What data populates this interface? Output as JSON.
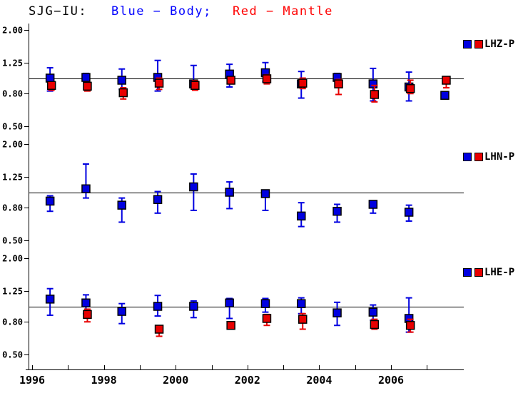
{
  "title": {
    "station": "SJG−IU:",
    "blue_segment": "Blue − Body;",
    "red_segment": "Red − Mantle"
  },
  "colors": {
    "body_blue": "#0000e0",
    "mantle_red": "#e80000",
    "title_blue": "#0000ff",
    "title_red": "#ff0000",
    "axis": "#000000"
  },
  "chart_data": {
    "type": "scatter",
    "title": "SJG−IU:  Blue − Body;  Red − Mantle",
    "x_axis": {
      "ticks": [
        1996,
        1997,
        1998,
        1999,
        2000,
        2001,
        2002,
        2003,
        2004,
        2005,
        2006,
        2007
      ],
      "labeled_ticks": [
        "1996",
        "1998",
        "2000",
        "2002",
        "2004",
        "2006"
      ],
      "range": [
        1995.85,
        2008.05
      ]
    },
    "y_axis": {
      "scale": "log",
      "tick_labels": [
        "2.00",
        "1.25",
        "0.80",
        "0.50"
      ],
      "tick_values": [
        2.0,
        1.25,
        0.8,
        0.5
      ],
      "ylim": [
        0.5,
        2.0
      ],
      "reference_line": 1.0
    },
    "panels": [
      {
        "label": "LHZ-P",
        "series": [
          {
            "name": "Body",
            "color": "blue",
            "points": [
              {
                "year": 1996.5,
                "value": 1.0,
                "lo": 0.83,
                "hi": 1.16
              },
              {
                "year": 1997.5,
                "value": 1.01,
                "lo": 0.95,
                "hi": 1.07
              },
              {
                "year": 1998.5,
                "value": 0.97,
                "lo": 0.85,
                "hi": 1.14
              },
              {
                "year": 1999.5,
                "value": 1.01,
                "lo": 0.83,
                "hi": 1.29
              },
              {
                "year": 2000.5,
                "value": 0.92,
                "lo": 0.87,
                "hi": 1.2
              },
              {
                "year": 2001.5,
                "value": 1.06,
                "lo": 0.88,
                "hi": 1.22
              },
              {
                "year": 2002.5,
                "value": 1.08,
                "lo": 0.95,
                "hi": 1.25
              },
              {
                "year": 2003.5,
                "value": 0.92,
                "lo": 0.75,
                "hi": 1.1
              },
              {
                "year": 2004.5,
                "value": 1.01,
                "lo": 0.96,
                "hi": 1.07
              },
              {
                "year": 2005.5,
                "value": 0.92,
                "lo": 0.72,
                "hi": 1.15
              },
              {
                "year": 2006.5,
                "value": 0.88,
                "lo": 0.72,
                "hi": 1.09
              },
              {
                "year": 2007.5,
                "value": 0.78,
                "lo": 0.75,
                "hi": 0.81
              }
            ]
          },
          {
            "name": "Mantle",
            "color": "red",
            "points": [
              {
                "year": 1996.5,
                "value": 0.9,
                "lo": 0.84,
                "hi": 0.95
              },
              {
                "year": 1997.5,
                "value": 0.89,
                "lo": 0.83,
                "hi": 0.94
              },
              {
                "year": 1998.5,
                "value": 0.81,
                "lo": 0.74,
                "hi": 0.87
              },
              {
                "year": 1999.5,
                "value": 0.93,
                "lo": 0.85,
                "hi": 1.0
              },
              {
                "year": 2000.5,
                "value": 0.9,
                "lo": 0.84,
                "hi": 0.96
              },
              {
                "year": 2001.5,
                "value": 0.97,
                "lo": 0.92,
                "hi": 1.02
              },
              {
                "year": 2002.5,
                "value": 0.99,
                "lo": 0.92,
                "hi": 1.05
              },
              {
                "year": 2003.5,
                "value": 0.93,
                "lo": 0.86,
                "hi": 1.0
              },
              {
                "year": 2004.5,
                "value": 0.92,
                "lo": 0.79,
                "hi": 0.98
              },
              {
                "year": 2005.5,
                "value": 0.79,
                "lo": 0.71,
                "hi": 0.9
              },
              {
                "year": 2006.5,
                "value": 0.86,
                "lo": 0.8,
                "hi": 0.97
              },
              {
                "year": 2007.5,
                "value": 0.97,
                "lo": 0.87,
                "hi": 1.0
              }
            ]
          }
        ]
      },
      {
        "label": "LHN-P",
        "series": [
          {
            "name": "Body",
            "color": "blue",
            "points": [
              {
                "year": 1996.5,
                "value": 0.88,
                "lo": 0.76,
                "hi": 0.95
              },
              {
                "year": 1997.5,
                "value": 1.05,
                "lo": 0.92,
                "hi": 1.5
              },
              {
                "year": 1998.5,
                "value": 0.83,
                "lo": 0.65,
                "hi": 0.92
              },
              {
                "year": 1999.5,
                "value": 0.9,
                "lo": 0.74,
                "hi": 1.01
              },
              {
                "year": 2000.5,
                "value": 1.08,
                "lo": 0.77,
                "hi": 1.3
              },
              {
                "year": 2001.5,
                "value": 1.0,
                "lo": 0.79,
                "hi": 1.16
              },
              {
                "year": 2002.5,
                "value": 0.98,
                "lo": 0.77,
                "hi": 1.03
              },
              {
                "year": 2003.5,
                "value": 0.71,
                "lo": 0.61,
                "hi": 0.86
              },
              {
                "year": 2004.5,
                "value": 0.76,
                "lo": 0.65,
                "hi": 0.84
              },
              {
                "year": 2005.5,
                "value": 0.84,
                "lo": 0.74,
                "hi": 0.88
              },
              {
                "year": 2006.5,
                "value": 0.75,
                "lo": 0.66,
                "hi": 0.83
              }
            ]
          },
          {
            "name": "Mantle",
            "color": "red",
            "points": []
          }
        ]
      },
      {
        "label": "LHE-P",
        "series": [
          {
            "name": "Body",
            "color": "blue",
            "points": [
              {
                "year": 1996.5,
                "value": 1.11,
                "lo": 0.88,
                "hi": 1.29
              },
              {
                "year": 1997.5,
                "value": 1.05,
                "lo": 0.9,
                "hi": 1.18
              },
              {
                "year": 1998.5,
                "value": 0.93,
                "lo": 0.78,
                "hi": 1.04
              },
              {
                "year": 1999.5,
                "value": 1.0,
                "lo": 0.87,
                "hi": 1.17
              },
              {
                "year": 2000.5,
                "value": 1.0,
                "lo": 0.85,
                "hi": 1.08
              },
              {
                "year": 2001.5,
                "value": 1.05,
                "lo": 0.84,
                "hi": 1.12
              },
              {
                "year": 2002.5,
                "value": 1.04,
                "lo": 0.92,
                "hi": 1.12
              },
              {
                "year": 2003.5,
                "value": 1.04,
                "lo": 0.9,
                "hi": 1.13
              },
              {
                "year": 2004.5,
                "value": 0.91,
                "lo": 0.76,
                "hi": 1.06
              },
              {
                "year": 2005.5,
                "value": 0.92,
                "lo": 0.82,
                "hi": 1.02
              },
              {
                "year": 2006.5,
                "value": 0.84,
                "lo": 0.69,
                "hi": 1.13
              }
            ]
          },
          {
            "name": "Mantle",
            "color": "red",
            "points": [
              {
                "year": 1997.5,
                "value": 0.89,
                "lo": 0.8,
                "hi": 0.96
              },
              {
                "year": 1999.5,
                "value": 0.72,
                "lo": 0.65,
                "hi": 0.75
              },
              {
                "year": 2001.5,
                "value": 0.76,
                "lo": 0.72,
                "hi": 0.8
              },
              {
                "year": 2002.5,
                "value": 0.84,
                "lo": 0.76,
                "hi": 0.89
              },
              {
                "year": 2003.5,
                "value": 0.83,
                "lo": 0.72,
                "hi": 0.9
              },
              {
                "year": 2005.5,
                "value": 0.77,
                "lo": 0.72,
                "hi": 0.83
              },
              {
                "year": 2006.5,
                "value": 0.76,
                "lo": 0.69,
                "hi": 0.83
              }
            ]
          }
        ]
      }
    ]
  }
}
